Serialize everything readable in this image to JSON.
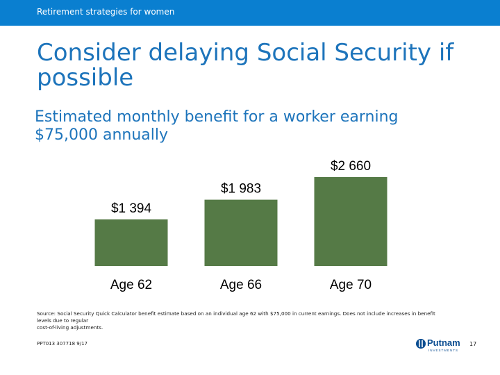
{
  "header": {
    "section_title": "Retirement strategies for women"
  },
  "slide": {
    "title": "Consider delaying Social Security if possible",
    "subtitle": "Estimated monthly benefit for a worker earning $75,000 annually"
  },
  "chart_data": {
    "type": "bar",
    "categories": [
      "Age 62",
      "Age 66",
      "Age 70"
    ],
    "values": [
      1394,
      1983,
      2660
    ],
    "data_labels": [
      "$1 394",
      "$1 983",
      "$2 660"
    ],
    "title": "",
    "xlabel": "",
    "ylabel": "",
    "ylim": [
      0,
      2660
    ],
    "grid": false,
    "legend": "none",
    "bar_color": "#557a46"
  },
  "footer": {
    "source_lines": [
      "Source: Social Security Quick Calculator benefit estimate based on an individual age 62 with $75,000 in current earnings. Does not include increases in benefit",
      "levels due to regular",
      "cost-of-living adjustments."
    ],
    "code": "PPT013 307718 9/17",
    "logo_text": "Putnam",
    "logo_subtext": "INVESTMENTS",
    "page_number": "17"
  },
  "colors": {
    "header_bar": "#0a7fd0",
    "title": "#1d74bb",
    "brand": "#0b4d91"
  }
}
